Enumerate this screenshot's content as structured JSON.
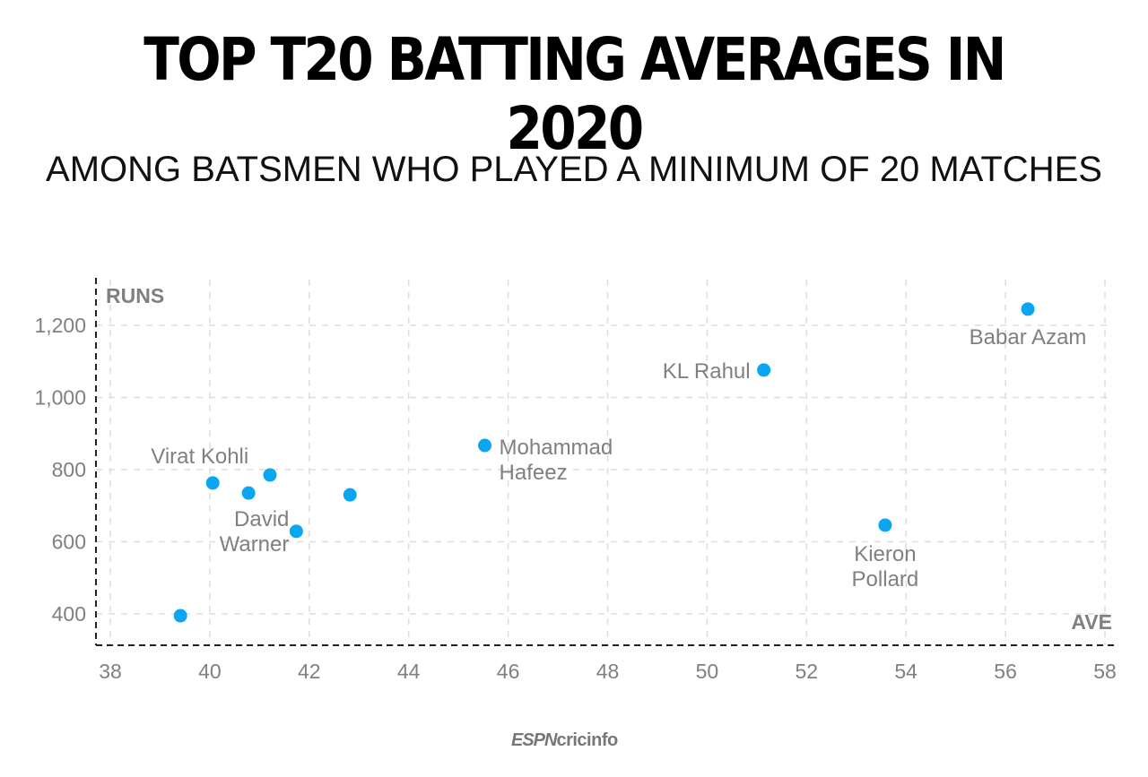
{
  "chart_data": {
    "type": "scatter",
    "title": "TOP T20 BATTING AVERAGES IN 2020",
    "subtitle": "AMONG BATSMEN WHO PLAYED A MINIMUM OF 20 MATCHES",
    "xlabel": "AVE",
    "ylabel": "RUNS",
    "xlim": [
      38,
      58
    ],
    "ylim": [
      320,
      1320
    ],
    "x_ticks": [
      "38",
      "40",
      "42",
      "44",
      "46",
      "48",
      "50",
      "52",
      "54",
      "56",
      "58"
    ],
    "y_ticks": [
      "400",
      "600",
      "800",
      "1,000",
      "1,200"
    ],
    "grid": true,
    "point_color": "#0ba6f2",
    "points": [
      {
        "x": 39.41,
        "y": 395,
        "label": ""
      },
      {
        "x": 40.06,
        "y": 763,
        "label": "Virat Kohli"
      },
      {
        "x": 40.78,
        "y": 735,
        "label": ""
      },
      {
        "x": 41.21,
        "y": 785,
        "label": ""
      },
      {
        "x": 41.74,
        "y": 629,
        "label": "David Warner"
      },
      {
        "x": 42.82,
        "y": 730,
        "label": ""
      },
      {
        "x": 45.53,
        "y": 867,
        "label": "Mohammad Hafeez"
      },
      {
        "x": 51.14,
        "y": 1076,
        "label": "KL Rahul"
      },
      {
        "x": 53.58,
        "y": 646,
        "label": "Kieron Pollard"
      },
      {
        "x": 56.45,
        "y": 1245,
        "label": "Babar Azam"
      }
    ]
  },
  "logo": {
    "espn": "ESPN",
    "cricinfo": "cricinfo"
  }
}
